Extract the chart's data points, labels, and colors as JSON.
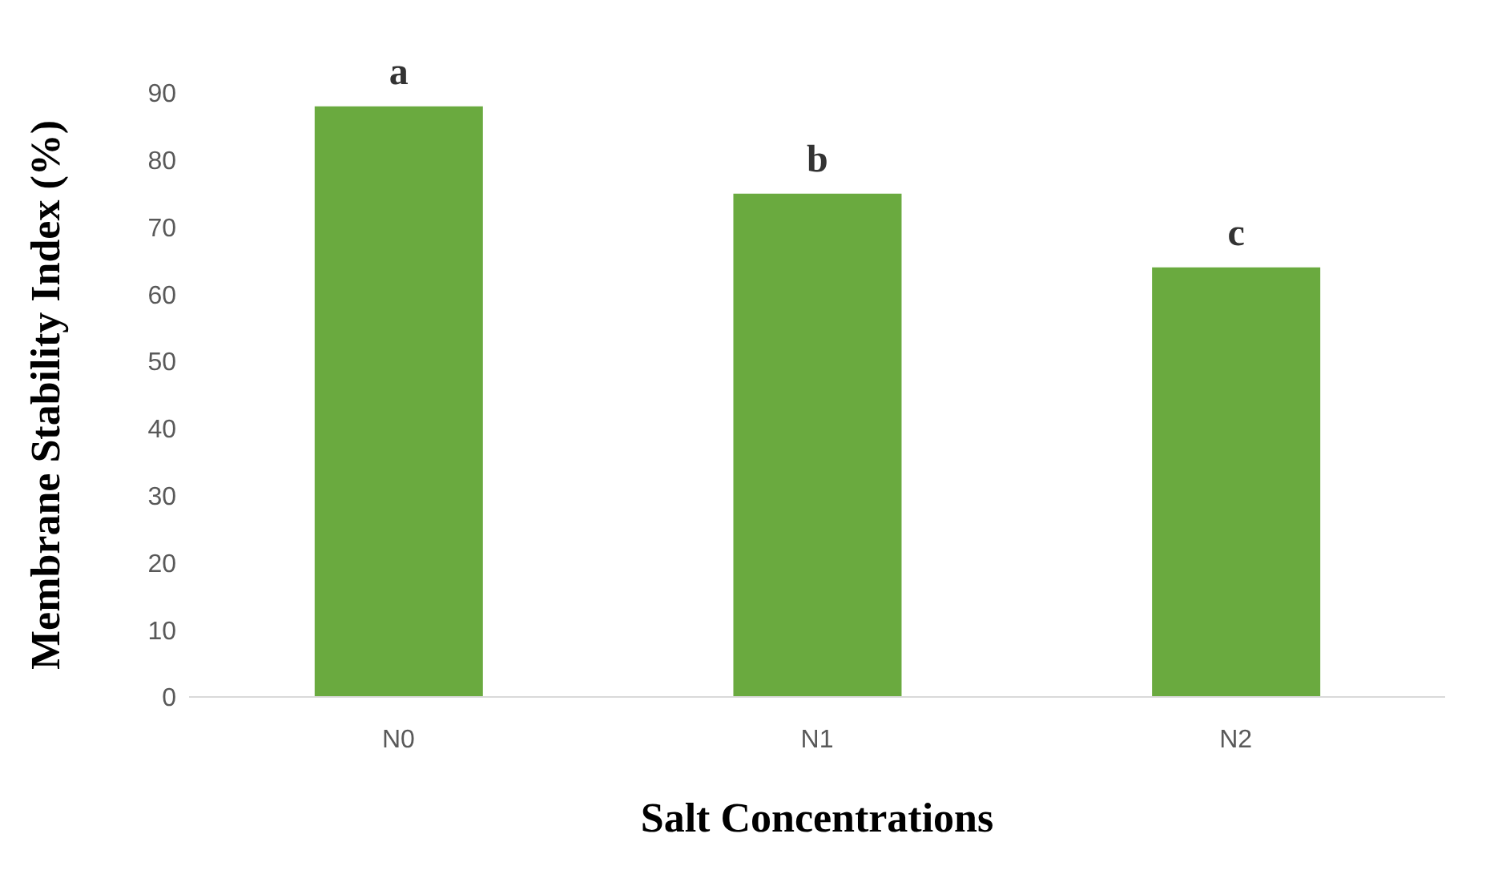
{
  "chart_data": {
    "type": "bar",
    "xlabel": "Salt Concentrations",
    "ylabel": "Membrane Stability Index (%)",
    "categories": [
      "N0",
      "N1",
      "N2"
    ],
    "values": [
      88,
      75,
      64
    ],
    "color": "#6aaa3f",
    "ylim": [
      0,
      90
    ],
    "yticks": [
      0,
      10,
      20,
      30,
      40,
      50,
      60,
      70,
      80,
      90
    ],
    "grid": false,
    "annotations": [
      {
        "text": "a",
        "x": "N0",
        "y": 88
      },
      {
        "text": "b",
        "x": "N1",
        "y": 75
      },
      {
        "text": "c",
        "x": "N2",
        "y": 64
      }
    ]
  }
}
